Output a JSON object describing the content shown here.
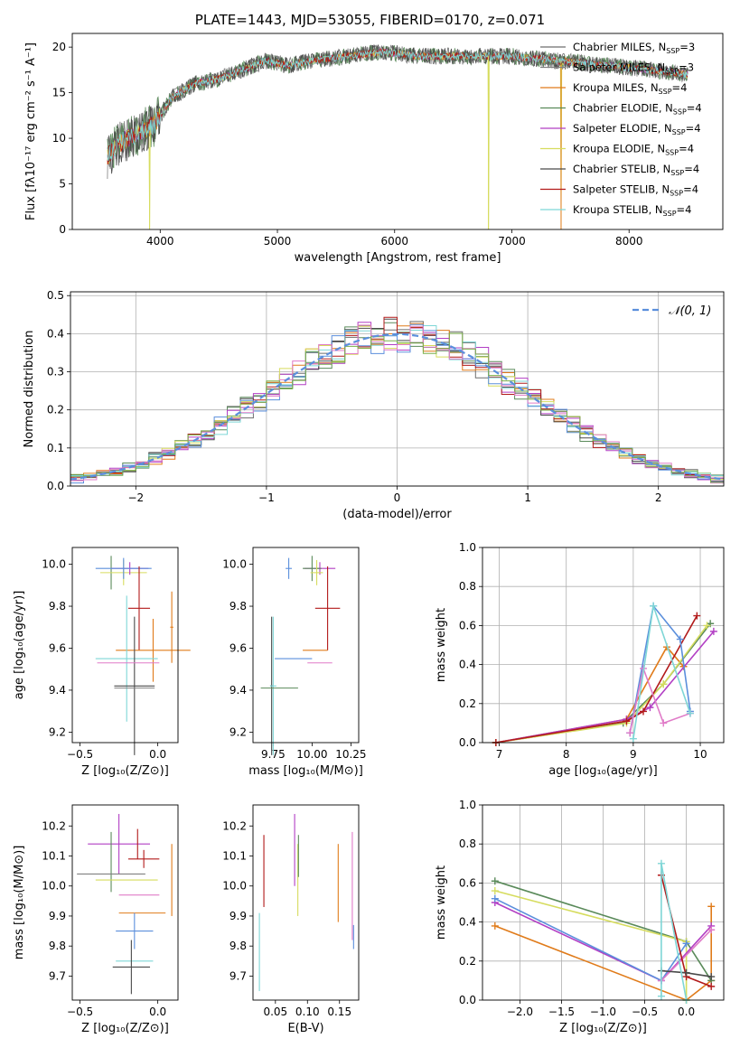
{
  "figure": {
    "title": "PLATE=1443, MJD=53055, FIBERID=0170, z=0.071"
  },
  "colors": {
    "c1": "#6e6e6e",
    "c2": "#808080",
    "c3": "#e07b1a",
    "c4": "#5a8a5a",
    "c5": "#b23fc4",
    "c6": "#d6dc5e",
    "c7": "#4a4a4a",
    "c8": "#b21a1a",
    "c9": "#7ed6d6",
    "blue": "#5b8fdc",
    "pink": "#e07bc8",
    "green": "#7ab04a",
    "grid": "#b0b0b0"
  },
  "chart_data": [
    {
      "id": "spectrum",
      "type": "line",
      "title": "PLATE=1443, MJD=53055, FIBERID=0170, z=0.071",
      "xlabel": "wavelength [Angstrom, rest frame]",
      "ylabel": "Flux [fλ10⁻¹⁷ erg cm⁻² s⁻¹ A⁻¹]",
      "xlim": [
        3250,
        8800
      ],
      "ylim": [
        0,
        21.5
      ],
      "xticks": [
        4000,
        5000,
        6000,
        7000,
        8000
      ],
      "yticks": [
        0,
        5,
        10,
        15,
        20
      ],
      "legend_position": "top-right",
      "legend": [
        "Chabrier MILES, N_SSP=3",
        "Salpeter MILES, N_SSP=3",
        "Kroupa MILES, N_SSP=4",
        "Chabrier ELODIE, N_SSP=4",
        "Salpeter ELODIE, N_SSP=4",
        "Kroupa ELODIE, N_SSP=4",
        "Chabrier STELIB, N_SSP=4",
        "Salpeter STELIB, N_SSP=4",
        "Kroupa STELIB, N_SSP=4"
      ],
      "continuum": [
        [
          3550,
          8
        ],
        [
          3650,
          9.5
        ],
        [
          3800,
          10.5
        ],
        [
          3950,
          11.5
        ],
        [
          4100,
          14.5
        ],
        [
          4300,
          16
        ],
        [
          4500,
          16.5
        ],
        [
          4700,
          17.5
        ],
        [
          4900,
          18.5
        ],
        [
          5100,
          18
        ],
        [
          5300,
          18.5
        ],
        [
          5600,
          19
        ],
        [
          5900,
          19.5
        ],
        [
          6200,
          19
        ],
        [
          6600,
          19
        ],
        [
          7000,
          19
        ],
        [
          7400,
          18.5
        ],
        [
          7800,
          18
        ],
        [
          8200,
          17.5
        ],
        [
          8500,
          17
        ]
      ],
      "dips": [
        {
          "x": 3910,
          "y": 0
        },
        {
          "x": 6800,
          "y": 0
        },
        {
          "x": 7420,
          "y": 0
        }
      ]
    },
    {
      "id": "residuals",
      "type": "bar",
      "xlabel": "(data-model)/error",
      "ylabel": "Normed distribution",
      "xlim": [
        -2.5,
        2.5
      ],
      "ylim": [
        0,
        0.51
      ],
      "xticks": [
        -2,
        -1,
        0,
        1,
        2
      ],
      "xticklabels": [
        "−2",
        "−1",
        "0",
        "1",
        "2"
      ],
      "yticks": [
        0,
        0.1,
        0.2,
        0.3,
        0.4,
        0.5
      ],
      "yticklabels": [
        "0.0",
        "0.1",
        "0.2",
        "0.3",
        "0.4",
        "0.5"
      ],
      "legend": [
        "𝒩(0, 1)"
      ],
      "legend_position": "top-right",
      "bin_width": 0.1,
      "grid": true
    },
    {
      "id": "age-vs-Z",
      "type": "scatter",
      "xlabel": "Z [log₁₀(Z/Z⊙)]",
      "ylabel": "age  [log₁₀(age/yr)]",
      "xlim": [
        -0.55,
        0.13
      ],
      "ylim": [
        9.15,
        10.08
      ],
      "xticks": [
        -0.5,
        0.0
      ],
      "xticklabels": [
        "−0.5",
        "0.0"
      ],
      "yticks": [
        9.2,
        9.4,
        9.6,
        9.8,
        10.0
      ],
      "yticklabels": [
        "9.2",
        "9.4",
        "9.6",
        "9.8",
        "10.0"
      ],
      "points": [
        {
          "c": "c4",
          "x": -0.3,
          "xe": 0.0,
          "y": 9.96,
          "ye": 0.08
        },
        {
          "c": "c6",
          "x": -0.22,
          "xe": 0.15,
          "y": 9.96,
          "ye": 0.06
        },
        {
          "c": "c5",
          "x": -0.18,
          "xe": 0.12,
          "y": 9.98,
          "ye": 0.03
        },
        {
          "c": "blue",
          "x": -0.22,
          "xe": 0.18,
          "y": 9.98,
          "ye": 0.05
        },
        {
          "c": "c8",
          "x": -0.12,
          "xe": 0.07,
          "y": 9.79,
          "ye": 0.2
        },
        {
          "c": "c3",
          "x": -0.03,
          "xe": 0.24,
          "y": 9.59,
          "ye": 0.15
        },
        {
          "c": "c3",
          "x": 0.09,
          "xe": 0.01,
          "y": 9.7,
          "ye": 0.17
        },
        {
          "c": "c9",
          "x": -0.2,
          "xe": 0.2,
          "y": 9.55,
          "ye": 0.3
        },
        {
          "c": "c7",
          "x": -0.15,
          "xe": 0.13,
          "y": 9.42,
          "ye": 0.33
        },
        {
          "c": "pink",
          "x": -0.19,
          "xe": 0.2,
          "y": 9.53,
          "ye": 0.0
        },
        {
          "c": "c2",
          "x": -0.15,
          "xe": 0.13,
          "y": 9.41,
          "ye": 0.0
        }
      ]
    },
    {
      "id": "age-vs-mass",
      "type": "scatter",
      "xlabel": "mass [log₁₀(M/M⊙)]",
      "xlim": [
        9.62,
        10.3
      ],
      "ylim": [
        9.15,
        10.08
      ],
      "xticks": [
        9.75,
        10.0,
        10.25
      ],
      "xticklabels": [
        "9.75",
        "10.00",
        "10.25"
      ],
      "yticks": [
        9.2,
        9.4,
        9.6,
        9.8,
        10.0
      ],
      "yticklabels": [
        "9.2",
        "9.4",
        "9.6",
        "9.8",
        "10.0"
      ],
      "points": [
        {
          "c": "c5",
          "x": 10.05,
          "xe": 0.1,
          "y": 9.98,
          "ye": 0.03
        },
        {
          "c": "c4",
          "x": 10.0,
          "xe": 0.06,
          "y": 9.98,
          "ye": 0.06
        },
        {
          "c": "c6",
          "x": 10.03,
          "xe": 0.04,
          "y": 9.96,
          "ye": 0.06
        },
        {
          "c": "blue",
          "x": 9.85,
          "xe": 0.02,
          "y": 9.98,
          "ye": 0.05
        },
        {
          "c": "c8",
          "x": 10.1,
          "xe": 0.08,
          "y": 9.79,
          "ye": 0.2
        },
        {
          "c": "c3",
          "x": 10.02,
          "xe": 0.08,
          "y": 9.59,
          "ye": 0.0
        },
        {
          "c": "blue",
          "x": 9.88,
          "xe": 0.12,
          "y": 9.55,
          "ye": 0.0
        },
        {
          "c": "pink",
          "x": 10.05,
          "xe": 0.08,
          "y": 9.53,
          "ye": 0.0
        },
        {
          "c": "c7",
          "x": 9.74,
          "xe": 0.01,
          "y": 9.42,
          "ye": 0.33
        },
        {
          "c": "c9",
          "x": 9.75,
          "xe": 0.02,
          "y": 9.42,
          "ye": 0.33
        },
        {
          "c": "c4",
          "x": 9.79,
          "xe": 0.12,
          "y": 9.41,
          "ye": 0.0
        }
      ]
    },
    {
      "id": "weight-vs-age",
      "type": "line",
      "xlabel": "age  [log₁₀(age/yr)]",
      "ylabel": "mass weight",
      "xlim": [
        6.75,
        10.35
      ],
      "ylim": [
        0,
        1
      ],
      "xticks": [
        7,
        8,
        9,
        10
      ],
      "yticks": [
        0,
        0.2,
        0.4,
        0.6,
        0.8,
        1.0
      ],
      "yticklabels": [
        "0.0",
        "0.2",
        "0.4",
        "0.6",
        "0.8",
        "1.0"
      ],
      "grid": true,
      "series": [
        {
          "c": "c3",
          "x": [
            6.95,
            8.9,
            9.5,
            9.75
          ],
          "y": [
            0.0,
            0.12,
            0.49,
            0.39
          ]
        },
        {
          "c": "c4",
          "x": [
            6.95,
            8.85,
            9.45,
            10.15
          ],
          "y": [
            0.0,
            0.1,
            0.3,
            0.61
          ]
        },
        {
          "c": "c5",
          "x": [
            6.95,
            8.9,
            9.25,
            10.2
          ],
          "y": [
            0.0,
            0.12,
            0.18,
            0.57
          ]
        },
        {
          "c": "c6",
          "x": [
            6.95,
            8.9,
            9.45,
            10.1
          ],
          "y": [
            0.0,
            0.1,
            0.3,
            0.6
          ]
        },
        {
          "c": "c8",
          "x": [
            6.95,
            8.9,
            9.15,
            9.95
          ],
          "y": [
            0.0,
            0.11,
            0.16,
            0.65
          ]
        },
        {
          "c": "blue",
          "x": [
            8.95,
            9.3,
            9.7,
            9.85
          ],
          "y": [
            0.05,
            0.7,
            0.53,
            0.16
          ]
        },
        {
          "c": "pink",
          "x": [
            8.95,
            9.15,
            9.45,
            9.85
          ],
          "y": [
            0.05,
            0.38,
            0.1,
            0.15
          ]
        },
        {
          "c": "c9",
          "x": [
            9.0,
            9.3,
            9.85
          ],
          "y": [
            0.02,
            0.7,
            0.15
          ]
        }
      ]
    },
    {
      "id": "mass-vs-Z",
      "type": "scatter",
      "xlabel": "Z [log₁₀(Z/Z⊙)]",
      "ylabel": "mass [log₁₀(M/M⊙)]",
      "xlim": [
        -0.55,
        0.13
      ],
      "ylim": [
        9.62,
        10.27
      ],
      "xticks": [
        -0.5,
        0.0
      ],
      "xticklabels": [
        "−0.5",
        "0.0"
      ],
      "yticks": [
        9.7,
        9.8,
        9.9,
        10.0,
        10.1,
        10.2
      ],
      "yticklabels": [
        "9.7",
        "9.8",
        "9.9",
        "10.0",
        "10.1",
        "10.2"
      ],
      "points": [
        {
          "c": "c5",
          "x": -0.25,
          "xe": 0.2,
          "y": 10.14,
          "ye": 0.1
        },
        {
          "c": "c4",
          "x": -0.3,
          "xe": 0.0,
          "y": 10.08,
          "ye": 0.1
        },
        {
          "c": "c8",
          "x": -0.13,
          "xe": 0.0,
          "y": 10.14,
          "ye": 0.05
        },
        {
          "c": "c8",
          "x": -0.09,
          "xe": 0.1,
          "y": 10.09,
          "ye": 0.03
        },
        {
          "c": "c2",
          "x": -0.3,
          "xe": 0.22,
          "y": 10.04,
          "ye": 0.0
        },
        {
          "c": "c6",
          "x": -0.2,
          "xe": 0.2,
          "y": 10.02,
          "ye": 0.0
        },
        {
          "c": "pink",
          "x": -0.12,
          "xe": 0.13,
          "y": 9.97,
          "ye": 0.0
        },
        {
          "c": "c3",
          "x": -0.1,
          "xe": 0.15,
          "y": 9.91,
          "ye": 0.0
        },
        {
          "c": "c3",
          "x": 0.09,
          "xe": 0.0,
          "y": 10.02,
          "ye": 0.12
        },
        {
          "c": "blue",
          "x": -0.15,
          "xe": 0.12,
          "y": 9.85,
          "ye": 0.06
        },
        {
          "c": "c9",
          "x": -0.15,
          "xe": 0.12,
          "y": 9.75,
          "ye": 0.0
        },
        {
          "c": "c7",
          "x": -0.17,
          "xe": 0.12,
          "y": 9.73,
          "ye": 0.09
        }
      ]
    },
    {
      "id": "mass-vs-EBV",
      "type": "scatter",
      "xlabel": "E(B-V)",
      "xlim": [
        0.015,
        0.18
      ],
      "ylim": [
        9.62,
        10.27
      ],
      "xticks": [
        0.05,
        0.1,
        0.15
      ],
      "xticklabels": [
        "0.05",
        "0.10",
        "0.15"
      ],
      "yticks": [
        9.7,
        9.8,
        9.9,
        10.0,
        10.1,
        10.2
      ],
      "yticklabels": [
        "9.7",
        "9.8",
        "9.9",
        "10.0",
        "10.1",
        "10.2"
      ],
      "points": [
        {
          "c": "c9",
          "x": 0.025,
          "y": 9.78,
          "ye": 0.13
        },
        {
          "c": "c8",
          "x": 0.032,
          "y": 10.05,
          "ye": 0.12
        },
        {
          "c": "c5",
          "x": 0.08,
          "y": 10.12,
          "ye": 0.12
        },
        {
          "c": "c6",
          "x": 0.085,
          "y": 10.02,
          "ye": 0.12
        },
        {
          "c": "c4",
          "x": 0.086,
          "y": 10.1,
          "ye": 0.07
        },
        {
          "c": "c3",
          "x": 0.148,
          "y": 10.01,
          "ye": 0.13
        },
        {
          "c": "pink",
          "x": 0.17,
          "y": 10.0,
          "ye": 0.18
        },
        {
          "c": "blue",
          "x": 0.172,
          "y": 9.83,
          "ye": 0.04
        }
      ]
    },
    {
      "id": "weight-vs-Z",
      "type": "line",
      "xlabel": "Z [log₁₀(Z/Z⊙)]",
      "ylabel": "mass weight",
      "xlim": [
        -2.45,
        0.45
      ],
      "ylim": [
        0,
        1
      ],
      "xticks": [
        -2.0,
        -1.5,
        -1.0,
        -0.5,
        0.0
      ],
      "xticklabels": [
        "−2.0",
        "−1.5",
        "−1.0",
        "−0.5",
        "0.0"
      ],
      "yticks": [
        0,
        0.2,
        0.4,
        0.6,
        0.8,
        1.0
      ],
      "yticklabels": [
        "0.0",
        "0.2",
        "0.4",
        "0.6",
        "0.8",
        "1.0"
      ],
      "grid": true,
      "series": [
        {
          "c": "c3",
          "x": [
            -2.3,
            0.0,
            0.3,
            0.3
          ],
          "y": [
            0.38,
            0.0,
            0.1,
            0.48
          ]
        },
        {
          "c": "c4",
          "x": [
            -2.3,
            0.0,
            0.3
          ],
          "y": [
            0.61,
            0.3,
            0.1
          ]
        },
        {
          "c": "c6",
          "x": [
            -2.3,
            0.0,
            0.0
          ],
          "y": [
            0.56,
            0.3,
            0.0
          ]
        },
        {
          "c": "c5",
          "x": [
            -2.3,
            -0.3,
            0.3
          ],
          "y": [
            0.5,
            0.1,
            0.38
          ]
        },
        {
          "c": "blue",
          "x": [
            -2.3,
            -0.3,
            0.0
          ],
          "y": [
            0.52,
            0.1,
            0.29
          ]
        },
        {
          "c": "pink",
          "x": [
            -0.3,
            0.3
          ],
          "y": [
            0.1,
            0.36
          ]
        },
        {
          "c": "c8",
          "x": [
            -0.3,
            0.0,
            0.3
          ],
          "y": [
            0.64,
            0.12,
            0.07
          ]
        },
        {
          "c": "c7",
          "x": [
            -0.3,
            0.0,
            0.3
          ],
          "y": [
            0.15,
            0.14,
            0.12
          ]
        },
        {
          "c": "c9",
          "x": [
            -0.3,
            -0.3,
            0.0
          ],
          "y": [
            0.02,
            0.7,
            0.0
          ]
        }
      ]
    }
  ]
}
